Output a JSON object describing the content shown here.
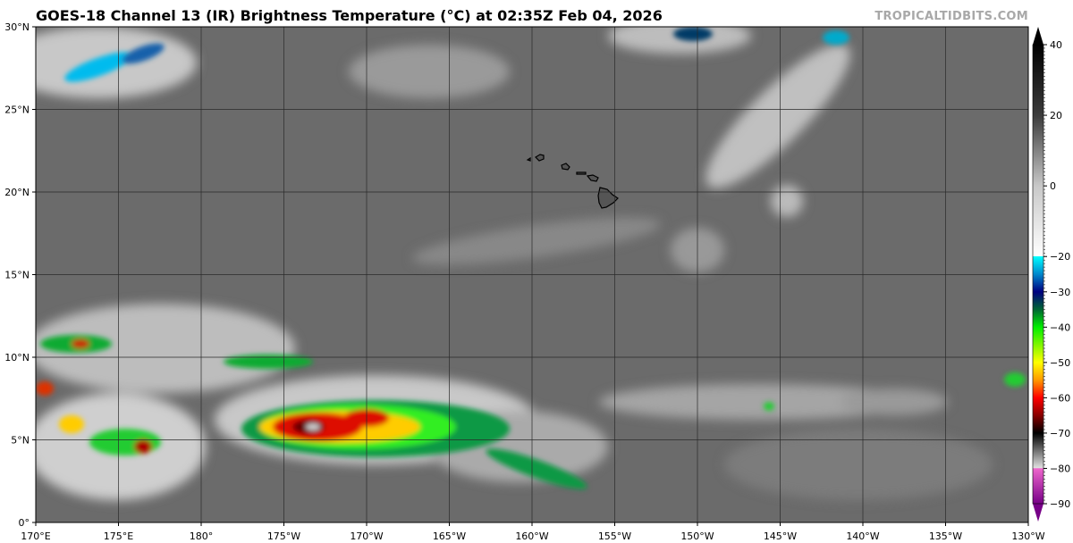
{
  "title": "GOES-18 Channel 13 (IR) Brightness Temperature (°C) at 02:35Z Feb 04, 2026",
  "watermark": "TROPICALTIDBITS.COM",
  "map": {
    "lon_labels": [
      "170°E",
      "175°E",
      "180°",
      "175°W",
      "170°W",
      "165°W",
      "160°W",
      "155°W",
      "150°W",
      "145°W",
      "140°W",
      "135°W",
      "130°W"
    ],
    "lat_labels": [
      "0°",
      "5°N",
      "10°N",
      "15°N",
      "20°N",
      "25°N",
      "30°N"
    ],
    "lon_range": [
      170,
      230
    ],
    "lat_range": [
      0,
      30
    ],
    "background_color": "#6b6b6b",
    "gridline_color": "#2a2a2a"
  },
  "colorbar": {
    "range": [
      -90,
      40
    ],
    "tick_labels": [
      "40",
      "20",
      "0",
      "−20",
      "−30",
      "−40",
      "−50",
      "−60",
      "−70",
      "−80",
      "−90"
    ],
    "tick_values": [
      40,
      20,
      0,
      -20,
      -30,
      -40,
      -50,
      -60,
      -70,
      -80,
      -90
    ],
    "stops": [
      {
        "value": 40,
        "color": "#000000"
      },
      {
        "value": 20,
        "color": "#3c3c3c"
      },
      {
        "value": 0,
        "color": "#c8c8c8"
      },
      {
        "value": -19.9,
        "color": "#ffffff"
      },
      {
        "value": -20,
        "color": "#00ffff"
      },
      {
        "value": -25,
        "color": "#0088cc"
      },
      {
        "value": -30,
        "color": "#000080"
      },
      {
        "value": -35,
        "color": "#006633"
      },
      {
        "value": -40,
        "color": "#00ee00"
      },
      {
        "value": -50,
        "color": "#ffff00"
      },
      {
        "value": -55,
        "color": "#ff9900"
      },
      {
        "value": -60,
        "color": "#ff0000"
      },
      {
        "value": -65,
        "color": "#880000"
      },
      {
        "value": -70,
        "color": "#000000"
      },
      {
        "value": -79.9,
        "color": "#e0e0e0"
      },
      {
        "value": -80,
        "color": "#ee66cc"
      },
      {
        "value": -90,
        "color": "#770088"
      }
    ]
  }
}
